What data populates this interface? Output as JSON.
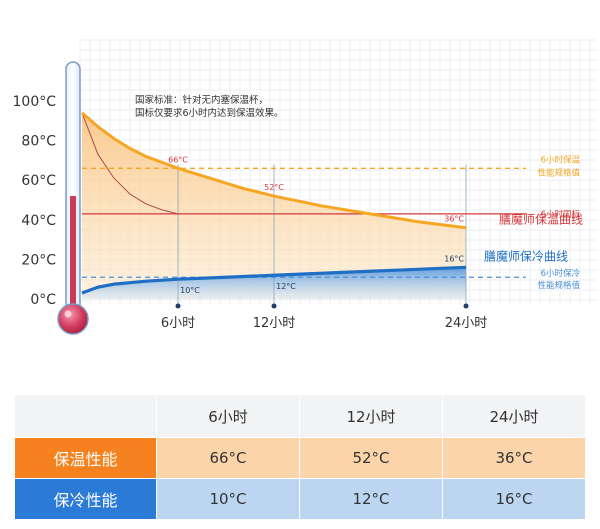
{
  "chart_data": {
    "type": "line",
    "y_ticks": [
      "100°C",
      "80°C",
      "60°C",
      "40°C",
      "20°C",
      "0°C"
    ],
    "y_tick_values": [
      100,
      80,
      60,
      40,
      20,
      0
    ],
    "x_ticks": [
      "6小时",
      "12小时",
      "24小时"
    ],
    "x_tick_values": [
      6,
      12,
      24
    ],
    "ylim": [
      0,
      100
    ],
    "xlim": [
      0,
      24
    ],
    "annotation": [
      "国家标准：针对无内塞保温杯，",
      "国标仅要求6小时内达到保温效果。"
    ],
    "series": [
      {
        "name": "膳魔师保温曲线",
        "color": "#f5a623",
        "x": [
          0,
          1,
          2,
          3,
          4,
          5,
          6,
          8,
          10,
          12,
          15,
          18,
          21,
          24
        ],
        "y": [
          94,
          87,
          81,
          76,
          72,
          69,
          66,
          61,
          56,
          52,
          47,
          43,
          39,
          36
        ],
        "point_labels": [
          {
            "x": 6,
            "y": 66,
            "text": "66°C"
          },
          {
            "x": 12,
            "y": 52,
            "text": "52°C"
          },
          {
            "x": 24,
            "y": 36,
            "text": "36°C"
          }
        ]
      },
      {
        "name": "膳魔师保冷曲线",
        "color": "#1f6fc5",
        "x": [
          0,
          1,
          2,
          4,
          6,
          9,
          12,
          18,
          24
        ],
        "y": [
          3,
          6,
          7.5,
          9,
          10,
          11,
          12,
          14,
          16
        ],
        "point_labels": [
          {
            "x": 6,
            "y": 10,
            "text": "10°C"
          },
          {
            "x": 12,
            "y": 12,
            "text": "12°C"
          },
          {
            "x": 24,
            "y": 16,
            "text": "16°C"
          }
        ]
      }
    ],
    "reference_lines": [
      {
        "label": "6小时保温性能规格值",
        "y": 66,
        "color": "#f5a623",
        "dashed": true
      },
      {
        "label": "6小时国标",
        "y": 43,
        "color": "#d9383a",
        "dashed": false
      },
      {
        "label": "6小时保冷性能规格值",
        "y": 11,
        "color": "#4a90d9",
        "dashed": true
      }
    ],
    "standard_curve": {
      "color": "#b24a4a",
      "x": [
        0,
        1,
        2,
        3,
        4,
        5,
        6
      ],
      "y": [
        94,
        73,
        61,
        53,
        48,
        45,
        43
      ]
    },
    "thermometer": {
      "level": 52
    }
  },
  "table": {
    "headers": [
      "",
      "6小时",
      "12小时",
      "24小时"
    ],
    "rows": [
      {
        "label": "保温性能",
        "values": [
          "66°C",
          "52°C",
          "36°C"
        ]
      },
      {
        "label": "保冷性能",
        "values": [
          "10°C",
          "12°C",
          "16°C"
        ]
      }
    ]
  }
}
